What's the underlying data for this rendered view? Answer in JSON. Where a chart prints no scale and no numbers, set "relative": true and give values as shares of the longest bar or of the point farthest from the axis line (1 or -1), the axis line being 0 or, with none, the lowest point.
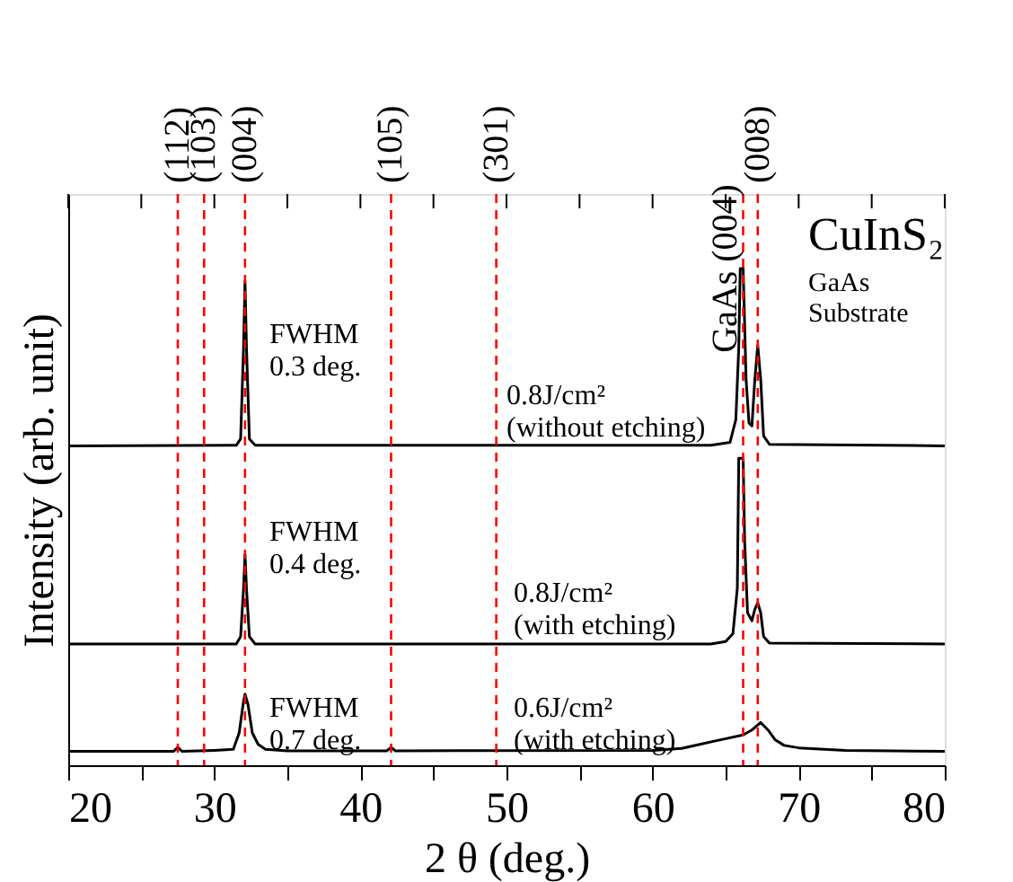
{
  "chart_data": {
    "type": "line",
    "relative": true,
    "xlabel": "2 θ  (deg.)",
    "ylabel": "Intensity (arb. unit)",
    "xlim": [
      20,
      80
    ],
    "xticks": [
      20,
      {
        "value": 25,
        "label": null
      },
      30,
      {
        "value": 35,
        "label": null
      },
      40,
      {
        "value": 45,
        "label": null
      },
      50,
      {
        "value": 55,
        "label": null
      },
      60,
      {
        "value": 65,
        "label": null
      },
      70,
      {
        "value": 75,
        "label": null
      },
      80
    ],
    "grid": false,
    "line_style": "solid",
    "series": [
      {
        "color": "#000000",
        "x": [
          20,
          31.5,
          31.8,
          32.0,
          32.1,
          32.2,
          32.4,
          32.8,
          64,
          65.3,
          65.7,
          65.9,
          66.0,
          66.2,
          66.4,
          66.6,
          66.8,
          67.0,
          67.2,
          67.4,
          67.6,
          68,
          80
        ],
        "values": [
          0.643,
          0.644,
          0.657,
          0.841,
          0.974,
          0.841,
          0.657,
          0.644,
          0.644,
          0.65,
          0.696,
          0.841,
          1,
          1,
          0.777,
          0.689,
          0.683,
          0.777,
          0.845,
          0.777,
          0.663,
          0.646,
          0.643
        ]
      },
      {
        "color": "#000000",
        "x": [
          20,
          31.5,
          31.8,
          32.0,
          32.1,
          32.2,
          32.4,
          32.8,
          64,
          65.0,
          65.5,
          65.8,
          65.9,
          66.2,
          66.3,
          66.5,
          66.8,
          67.0,
          67.2,
          67.4,
          67.6,
          68,
          80
        ],
        "values": [
          0.244,
          0.244,
          0.259,
          0.356,
          0.424,
          0.356,
          0.259,
          0.244,
          0.244,
          0.249,
          0.265,
          0.356,
          0.618,
          0.618,
          0.453,
          0.307,
          0.291,
          0.314,
          0.327,
          0.307,
          0.259,
          0.246,
          0.244
        ]
      },
      {
        "color": "#000000",
        "x": [
          20,
          27.2,
          27.5,
          27.8,
          30,
          31.3,
          31.7,
          32.0,
          32.1,
          32.3,
          32.6,
          33.0,
          33.5,
          35,
          41.8,
          42.1,
          42.4,
          60,
          62,
          63.1,
          64.3,
          65.1,
          66.2,
          66.8,
          67.4,
          67.9,
          68.4,
          69,
          70,
          73.2,
          80
        ],
        "values": [
          0.028,
          0.028,
          0.036,
          0.028,
          0.03,
          0.032,
          0.065,
          0.129,
          0.143,
          0.123,
          0.065,
          0.042,
          0.032,
          0.029,
          0.029,
          0.036,
          0.029,
          0.03,
          0.034,
          0.041,
          0.049,
          0.054,
          0.061,
          0.071,
          0.086,
          0.071,
          0.051,
          0.04,
          0.035,
          0.03,
          0.028
        ]
      }
    ],
    "ref_lines": [
      {
        "axis": "x",
        "value": 27.5,
        "color": "#ff0000",
        "line_style": "dashed"
      },
      {
        "axis": "x",
        "value": 29.3,
        "color": "#ff0000",
        "line_style": "dashed"
      },
      {
        "axis": "x",
        "value": 32.1,
        "color": "#ff0000",
        "line_style": "dashed"
      },
      {
        "axis": "x",
        "value": 42.1,
        "color": "#ff0000",
        "line_style": "dashed"
      },
      {
        "axis": "x",
        "value": 49.3,
        "color": "#ff0000",
        "line_style": "dashed"
      },
      {
        "axis": "x",
        "value": 66.2,
        "color": "#ff0000",
        "line_style": "dashed"
      },
      {
        "axis": "x",
        "value": 67.2,
        "color": "#ff0000",
        "line_style": "dashed"
      }
    ],
    "annotations": [
      "CuInS₂",
      "GaAs\nSubstrate",
      "FWHM\n0.3 deg.",
      "0.8J/cm²\n(without etching)",
      "FWHM\n0.4 deg.",
      "0.8J/cm²\n(with etching)",
      "FWHM\n0.7 deg.",
      "0.6J/cm²\n(with etching)",
      {
        "text": "GaAs (004)",
        "x": 66.2,
        "y": 1
      },
      "(112)",
      "(103)",
      "(004)",
      "(105)",
      "(301)",
      "(008)"
    ]
  }
}
